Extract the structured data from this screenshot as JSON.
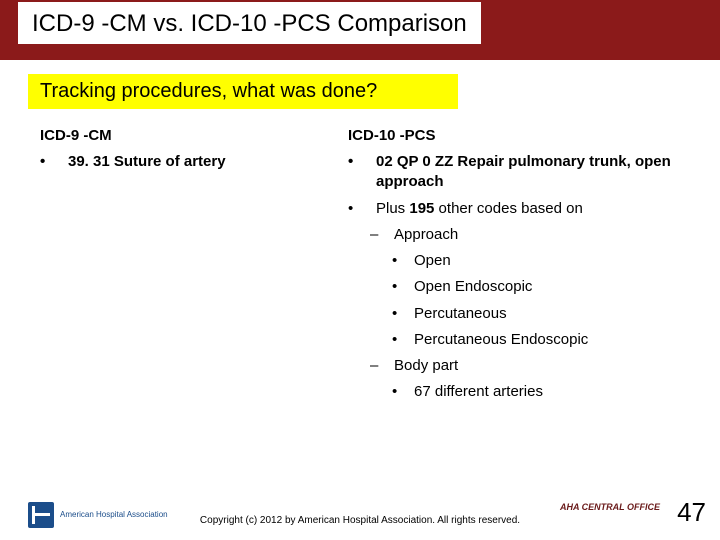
{
  "colors": {
    "title_band": "#8b1a1a",
    "subtitle_bg": "#ffff00",
    "text": "#000000",
    "logo_blue": "#1b4d8a",
    "central_office": "#6a1a1a",
    "background": "#ffffff"
  },
  "title": "ICD-9 -CM vs. ICD-10 -PCS Comparison",
  "subtitle": "Tracking procedures, what was done?",
  "left": {
    "header": "ICD-9 -CM",
    "items": [
      {
        "text": "39. 31 Suture of artery",
        "bold": true,
        "level": 0,
        "marker": "bullet"
      }
    ]
  },
  "right": {
    "header": "ICD-10 -PCS",
    "items": [
      {
        "text": "02 QP 0 ZZ Repair pulmonary trunk, open approach",
        "bold": true,
        "level": 0,
        "marker": "bullet"
      },
      {
        "text_before": "Plus ",
        "highlight": "195",
        "text_after": " other codes based on",
        "level": 0,
        "marker": "bullet"
      },
      {
        "text": "Approach",
        "level": 1,
        "marker": "dash"
      },
      {
        "text": "Open",
        "level": 2,
        "marker": "bullet"
      },
      {
        "text": "Open Endoscopic",
        "level": 2,
        "marker": "bullet"
      },
      {
        "text": "Percutaneous",
        "level": 2,
        "marker": "bullet"
      },
      {
        "text": "Percutaneous Endoscopic",
        "level": 2,
        "marker": "bullet"
      },
      {
        "text": "Body part",
        "level": 1,
        "marker": "dash"
      },
      {
        "text": "67 different arteries",
        "level": 2,
        "marker": "bullet"
      }
    ]
  },
  "footer": {
    "logo_text": "American Hospital\nAssociation",
    "copyright": "Copyright (c) 2012 by American Hospital Association. All rights reserved.",
    "central_office": "AHA CENTRAL OFFICE",
    "page_number": "47"
  }
}
